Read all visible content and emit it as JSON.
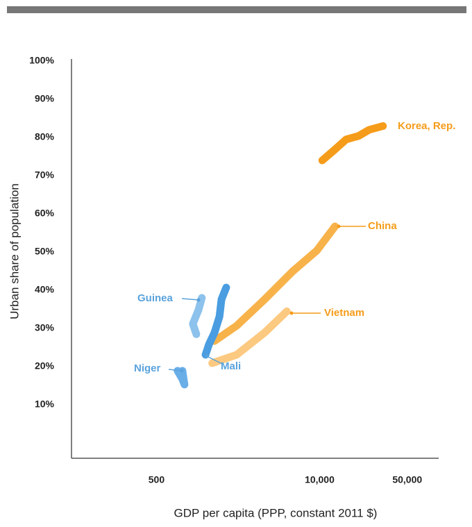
{
  "chart_data": {
    "type": "line",
    "xlabel": "GDP per capita (PPP, constant 2011 $)",
    "ylabel": "Urban share of population",
    "xscale": "log",
    "xlim": [
      105,
      89000
    ],
    "ylim": [
      -4,
      100
    ],
    "xticks": [
      500,
      {
        "value": 10000,
        "label": "10,000"
      },
      {
        "value": 50000,
        "label": "50,000"
      }
    ],
    "yticks": [
      {
        "value": 10,
        "label": "10%"
      },
      {
        "value": 20,
        "label": "20%"
      },
      {
        "value": 30,
        "label": "30%"
      },
      {
        "value": 40,
        "label": "40%"
      },
      {
        "value": 50,
        "label": "50%"
      },
      {
        "value": 60,
        "label": "60%"
      },
      {
        "value": 70,
        "label": "70%"
      },
      {
        "value": 80,
        "label": "80%"
      },
      {
        "value": 90,
        "label": "90%"
      },
      {
        "value": 100,
        "label": "100%"
      }
    ],
    "series": [
      {
        "name": "Korea, Rep.",
        "color": "#f59c1a",
        "x": [
          10500,
          13080,
          16270,
          20470,
          24800,
          32000
        ],
        "values": [
          74,
          76.7,
          79.5,
          80.4,
          82,
          83
        ]
      },
      {
        "name": "China",
        "color": "#f7b24a",
        "x": [
          1450,
          2180,
          3640,
          6070,
          9500,
          13250
        ],
        "values": [
          26.7,
          30.7,
          37.6,
          44.9,
          50.4,
          56.7
        ]
      },
      {
        "name": "Vietnam",
        "color": "#fcc981",
        "x": [
          1390,
          2180,
          3640,
          5480
        ],
        "values": [
          20.9,
          23.1,
          28.9,
          34.5
        ]
      },
      {
        "name": "Guinea",
        "color": "#8cc2ec",
        "x": [
          1040,
          975,
          1080,
          1150
        ],
        "values": [
          28.5,
          31.2,
          34.8,
          38
        ]
      },
      {
        "name": "Mali",
        "color": "#4a9de0",
        "x": [
          1230,
          1310,
          1450,
          1590,
          1650,
          1800
        ],
        "values": [
          23.1,
          25.8,
          28.9,
          33.1,
          37.6,
          40.7
        ]
      },
      {
        "name": "Niger",
        "color": "#6aaee8",
        "x": [
          736,
          805,
          836,
          805
        ],
        "values": [
          18.9,
          16.7,
          15.3,
          18.9
        ]
      }
    ]
  }
}
